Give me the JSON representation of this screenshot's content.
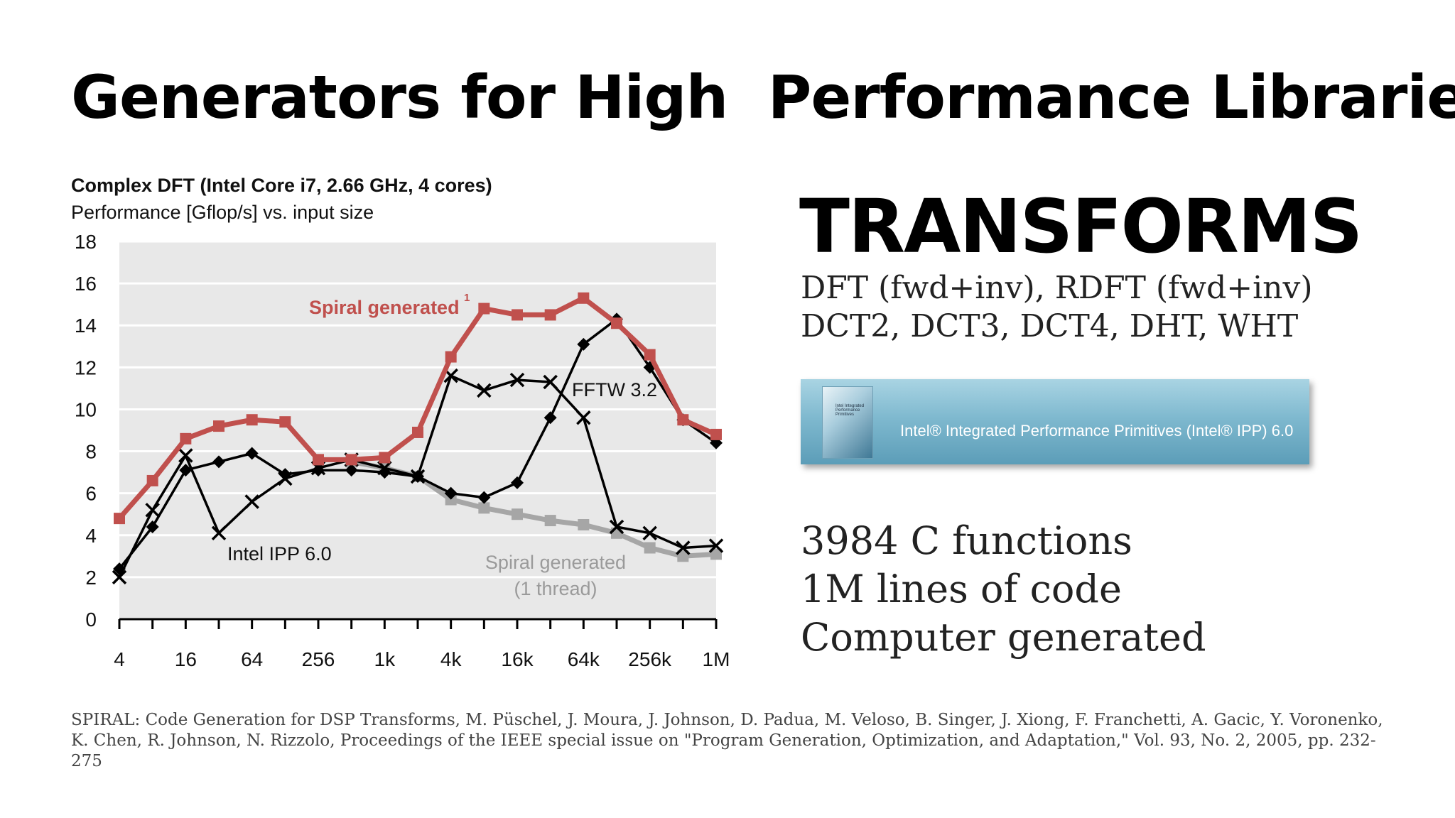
{
  "slide": {
    "title": "Generators for High  Performance Libraries"
  },
  "chart_data": {
    "type": "line",
    "title": "Complex DFT (Intel Core i7, 2.66 GHz, 4 cores)",
    "subtitle": "Performance [Gflop/s] vs. input size",
    "xlabel": "",
    "ylabel": "",
    "x": [
      "4",
      "8",
      "16",
      "32",
      "64",
      "128",
      "256",
      "512",
      "1k",
      "2k",
      "4k",
      "8k",
      "16k",
      "32k",
      "64k",
      "128k",
      "256k",
      "512k",
      "1M"
    ],
    "x_tick_labels": [
      "4",
      "16",
      "64",
      "256",
      "1k",
      "4k",
      "16k",
      "64k",
      "256k",
      "1M"
    ],
    "ylim": [
      0,
      18
    ],
    "y_ticks": [
      "0",
      "2",
      "4",
      "6",
      "8",
      "10",
      "12",
      "14",
      "16",
      "18"
    ],
    "grid": true,
    "series": [
      {
        "name": "Spiral generated",
        "superscript": "1",
        "color": "#c0504d",
        "marker": "square",
        "values": [
          4.8,
          6.6,
          8.6,
          9.2,
          9.5,
          9.4,
          7.6,
          7.6,
          7.7,
          8.9,
          12.5,
          14.8,
          14.5,
          14.5,
          15.3,
          14.1,
          12.6,
          9.5,
          8.8
        ]
      },
      {
        "name": "FFTW 3.2",
        "color": "#000000",
        "marker": "x",
        "values": [
          2.0,
          5.2,
          7.8,
          4.1,
          5.6,
          6.7,
          7.2,
          7.6,
          7.2,
          6.8,
          11.6,
          10.9,
          11.4,
          11.3,
          9.6,
          4.4,
          4.1,
          3.4,
          3.5
        ]
      },
      {
        "name": "Intel IPP 6.0",
        "color": "#000000",
        "marker": "diamond",
        "values": [
          2.4,
          4.4,
          7.1,
          7.5,
          7.9,
          6.9,
          7.1,
          7.1,
          7.0,
          6.8,
          6.0,
          5.8,
          6.5,
          9.6,
          13.1,
          14.3,
          12.0,
          9.5,
          8.4
        ]
      },
      {
        "name": "Spiral generated",
        "name_line2": "(1 thread)",
        "color": "#a6a6a6",
        "marker": "square",
        "values": [
          null,
          null,
          null,
          null,
          null,
          null,
          null,
          7.5,
          7.2,
          6.8,
          5.7,
          5.3,
          5.0,
          4.7,
          4.5,
          4.1,
          3.4,
          3.0,
          3.1
        ]
      }
    ]
  },
  "transforms": {
    "heading": "TRANSFORMS",
    "line1": "DFT (fwd+inv), RDFT (fwd+inv)",
    "line2": "DCT2, DCT3, DCT4, DHT, WHT"
  },
  "ipp_banner": {
    "text": "Intel® Integrated Performance Primitives (Intel® IPP) 6.0",
    "box_label": "Intel Integrated Performance Primitives"
  },
  "stats": {
    "line1": "3984 C functions",
    "line2": "1M lines of code",
    "line3": "Computer generated"
  },
  "citation": "SPIRAL: Code Generation for DSP Transforms, M. Püschel, J. Moura, J. Johnson, D. Padua, M. Veloso, B. Singer, J. Xiong, F. Franchetti, A. Gacic, Y. Voronenko, K. Chen, R. Johnson, N. Rizzolo, Proceedings of the IEEE special issue on \"Program Generation, Optimization, and Adaptation,\" Vol. 93, No. 2, 2005, pp. 232-275"
}
